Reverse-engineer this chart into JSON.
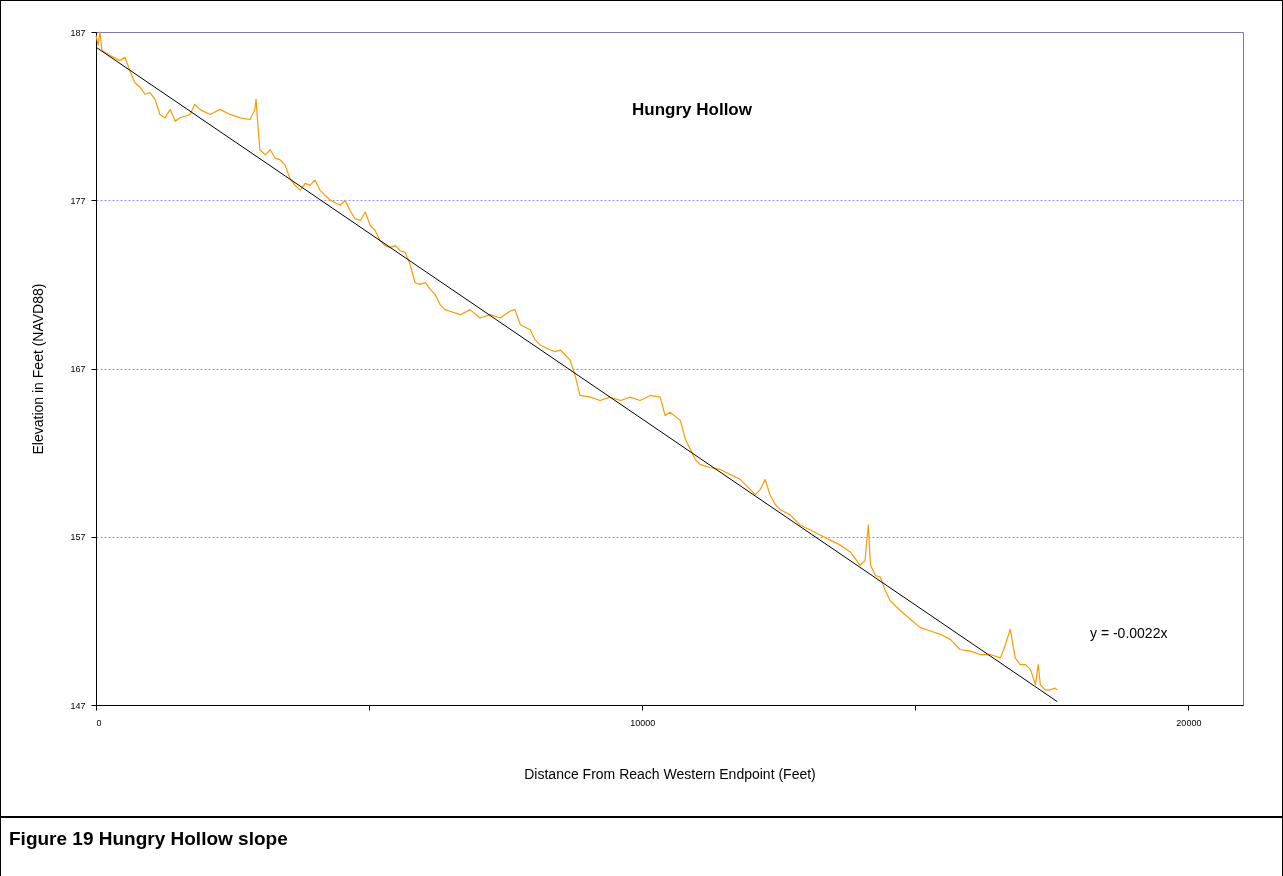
{
  "chart_data": {
    "type": "line",
    "title": "Hungry Hollow",
    "xlabel": "Distance From Reach Western Endpoint (Feet)",
    "ylabel": "Elevation in Feet (NAVD88)",
    "xlim": [
      0,
      21000
    ],
    "xticks": [
      0,
      {
        "value": 5000,
        "label": null
      },
      10000,
      {
        "value": 15000,
        "label": null
      },
      20000
    ],
    "ylim": [
      147,
      187
    ],
    "yticks": [
      147,
      157,
      167,
      177,
      187
    ],
    "grid": "y",
    "legend": false,
    "line_style": "solid",
    "marker": "none",
    "annotations": [
      "y = -0.0022x",
      "Figure 19 Hungry Hollow slope"
    ],
    "series": [
      {
        "color": "#ff9900",
        "x": [
          0,
          40,
          70,
          110,
          260,
          440,
          530,
          620,
          710,
          810,
          900,
          990,
          1080,
          1170,
          1260,
          1360,
          1450,
          1540,
          1720,
          1810,
          1900,
          2090,
          2270,
          2450,
          2640,
          2820,
          2910,
          2930,
          2970,
          3000,
          3100,
          3190,
          3280,
          3370,
          3460,
          3550,
          3640,
          3740,
          3830,
          3920,
          4010,
          4100,
          4190,
          4290,
          4470,
          4560,
          4650,
          4740,
          4840,
          4930,
          5020,
          5110,
          5200,
          5290,
          5380,
          5480,
          5570,
          5660,
          5750,
          5840,
          5930,
          6030,
          6120,
          6210,
          6300,
          6390,
          6480,
          6670,
          6850,
          7030,
          7220,
          7400,
          7580,
          7670,
          7770,
          7950,
          8040,
          8130,
          8320,
          8410,
          8500,
          8590,
          8680,
          8770,
          8860,
          9050,
          9230,
          9410,
          9600,
          9780,
          9960,
          10150,
          10330,
          10370,
          10420,
          10510,
          10700,
          10790,
          10880,
          10970,
          11060,
          11250,
          11430,
          11610,
          11800,
          11980,
          12070,
          12160,
          12250,
          12340,
          12440,
          12530,
          12710,
          12890,
          13080,
          13260,
          13440,
          13630,
          13810,
          13990,
          14080,
          14140,
          14180,
          14270,
          14360,
          14450,
          14540,
          14730,
          14910,
          15090,
          15280,
          15460,
          15640,
          15820,
          16010,
          16190,
          16370,
          16560,
          16650,
          16740,
          16830,
          16920,
          17020,
          17110,
          17200,
          17250,
          17290,
          17380,
          17470,
          17560,
          17600
        ],
        "values": [
          186.8,
          186.2,
          187.0,
          185.9,
          185.6,
          185.3,
          185.5,
          184.7,
          184.0,
          183.7,
          183.3,
          183.4,
          183.0,
          182.1,
          181.9,
          182.4,
          181.7,
          181.9,
          182.1,
          182.7,
          182.4,
          182.1,
          182.4,
          182.1,
          181.9,
          181.8,
          182.4,
          183.0,
          181.2,
          180.0,
          179.7,
          180.0,
          179.5,
          179.4,
          179.1,
          178.3,
          177.9,
          177.6,
          178.0,
          177.9,
          178.2,
          177.6,
          177.3,
          177.0,
          176.7,
          177.0,
          176.4,
          175.9,
          175.8,
          176.3,
          175.5,
          175.2,
          174.6,
          174.3,
          174.2,
          174.3,
          174.0,
          173.9,
          173.2,
          172.1,
          172.0,
          172.1,
          171.7,
          171.4,
          170.8,
          170.5,
          170.4,
          170.2,
          170.5,
          170.0,
          170.2,
          170.0,
          170.4,
          170.5,
          169.6,
          169.3,
          168.7,
          168.4,
          168.1,
          168.0,
          168.1,
          167.8,
          167.5,
          166.6,
          165.4,
          165.3,
          165.1,
          165.3,
          165.1,
          165.3,
          165.1,
          165.4,
          165.3,
          164.8,
          164.2,
          164.4,
          163.9,
          162.8,
          162.2,
          161.6,
          161.3,
          161.1,
          161.0,
          160.7,
          160.4,
          159.8,
          159.5,
          159.8,
          160.4,
          159.5,
          158.9,
          158.6,
          158.3,
          157.7,
          157.4,
          157.1,
          156.8,
          156.5,
          156.1,
          155.3,
          155.6,
          157.7,
          155.3,
          154.7,
          154.6,
          153.8,
          153.2,
          152.6,
          152.1,
          151.6,
          151.4,
          151.2,
          150.9,
          150.3,
          150.2,
          150.0,
          150.0,
          149.8,
          150.6,
          151.5,
          149.8,
          149.4,
          149.4,
          149.1,
          148.2,
          149.4,
          148.2,
          147.9,
          147.9,
          148.0,
          147.9
        ]
      },
      {
        "type": "line",
        "color": "#000000",
        "x": [
          0,
          17600
        ],
        "values": [
          186.1,
          147.2
        ]
      }
    ]
  }
}
